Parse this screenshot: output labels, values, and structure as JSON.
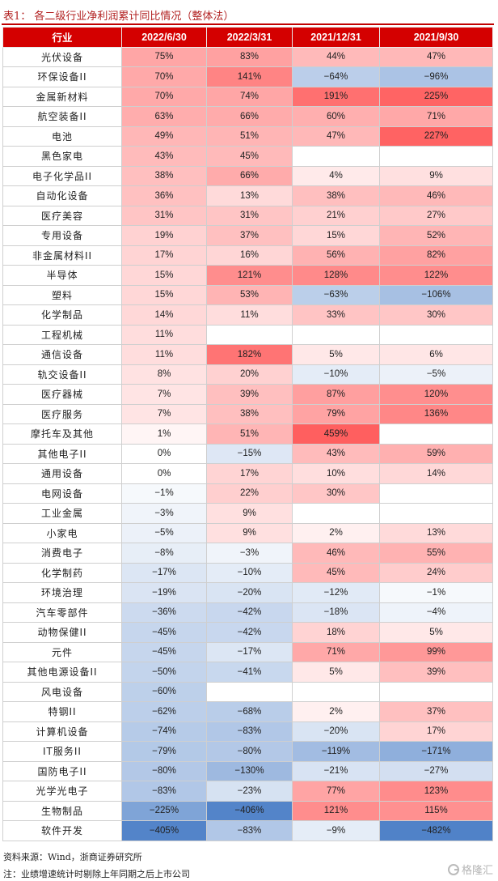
{
  "title": "表1：  各二级行业净利润累计同比情况（整体法）",
  "table": {
    "headers": [
      "行业",
      "2022/6/30",
      "2022/3/31",
      "2021/12/31",
      "2021/9/30"
    ],
    "rows": [
      {
        "industry": "光伏设备",
        "values": [
          75,
          83,
          44,
          47
        ]
      },
      {
        "industry": "环保设备II",
        "values": [
          70,
          141,
          -64,
          -96
        ]
      },
      {
        "industry": "金属新材料",
        "values": [
          70,
          74,
          191,
          225
        ]
      },
      {
        "industry": "航空装备II",
        "values": [
          63,
          66,
          60,
          71
        ]
      },
      {
        "industry": "电池",
        "values": [
          49,
          51,
          47,
          227
        ]
      },
      {
        "industry": "黑色家电",
        "values": [
          43,
          45,
          null,
          null
        ]
      },
      {
        "industry": "电子化学品II",
        "values": [
          38,
          66,
          4,
          9
        ]
      },
      {
        "industry": "自动化设备",
        "values": [
          36,
          13,
          38,
          46
        ]
      },
      {
        "industry": "医疗美容",
        "values": [
          31,
          31,
          21,
          27
        ]
      },
      {
        "industry": "专用设备",
        "values": [
          19,
          37,
          15,
          52
        ]
      },
      {
        "industry": "非金属材料II",
        "values": [
          17,
          16,
          56,
          82
        ]
      },
      {
        "industry": "半导体",
        "values": [
          15,
          121,
          128,
          122
        ]
      },
      {
        "industry": "塑料",
        "values": [
          15,
          53,
          -63,
          -106
        ]
      },
      {
        "industry": "化学制品",
        "values": [
          14,
          11,
          33,
          30
        ]
      },
      {
        "industry": "工程机械",
        "values": [
          11,
          null,
          null,
          null
        ]
      },
      {
        "industry": "通信设备",
        "values": [
          11,
          182,
          5,
          6
        ]
      },
      {
        "industry": "轨交设备II",
        "values": [
          8,
          20,
          -10,
          -5
        ]
      },
      {
        "industry": "医疗器械",
        "values": [
          7,
          39,
          87,
          120
        ]
      },
      {
        "industry": "医疗服务",
        "values": [
          7,
          38,
          79,
          136
        ]
      },
      {
        "industry": "摩托车及其他",
        "values": [
          1,
          51,
          459,
          null
        ]
      },
      {
        "industry": "其他电子II",
        "values": [
          0,
          -15,
          43,
          59
        ]
      },
      {
        "industry": "通用设备",
        "values": [
          0,
          17,
          10,
          14
        ]
      },
      {
        "industry": "电网设备",
        "values": [
          -1,
          22,
          30,
          null
        ]
      },
      {
        "industry": "工业金属",
        "values": [
          -3,
          9,
          null,
          null
        ]
      },
      {
        "industry": "小家电",
        "values": [
          -5,
          9,
          2,
          13
        ]
      },
      {
        "industry": "消费电子",
        "values": [
          -8,
          -3,
          46,
          55
        ]
      },
      {
        "industry": "化学制药",
        "values": [
          -17,
          -10,
          45,
          24
        ]
      },
      {
        "industry": "环境治理",
        "values": [
          -19,
          -20,
          -12,
          -1
        ]
      },
      {
        "industry": "汽车零部件",
        "values": [
          -36,
          -42,
          -18,
          -4
        ]
      },
      {
        "industry": "动物保健II",
        "values": [
          -45,
          -42,
          18,
          5
        ]
      },
      {
        "industry": "元件",
        "values": [
          -45,
          -17,
          71,
          99
        ]
      },
      {
        "industry": "其他电源设备II",
        "values": [
          -50,
          -41,
          5,
          39
        ]
      },
      {
        "industry": "风电设备",
        "values": [
          -60,
          null,
          null,
          null
        ]
      },
      {
        "industry": "特钢II",
        "values": [
          -62,
          -68,
          2,
          37
        ]
      },
      {
        "industry": "计算机设备",
        "values": [
          -74,
          -83,
          -20,
          17
        ]
      },
      {
        "industry": "IT服务II",
        "values": [
          -79,
          -80,
          -119,
          -171
        ]
      },
      {
        "industry": "国防电子II",
        "values": [
          -80,
          -130,
          -21,
          -27
        ]
      },
      {
        "industry": "光学光电子",
        "values": [
          -83,
          -23,
          77,
          123
        ]
      },
      {
        "industry": "生物制品",
        "values": [
          -225,
          -406,
          121,
          115
        ]
      },
      {
        "industry": "软件开发",
        "values": [
          -405,
          -83,
          -9,
          -482
        ]
      }
    ]
  },
  "notes": {
    "source": "资料来源：Wind，浙商证券研究所",
    "note": "注：业绩增速统计时剔除上年同期之后上市公司"
  },
  "watermark": "格隆汇"
}
